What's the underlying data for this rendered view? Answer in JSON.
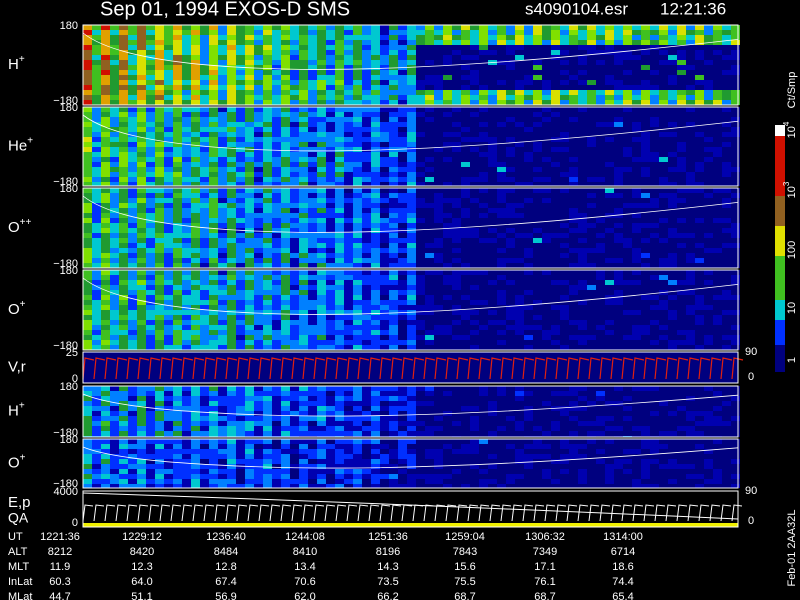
{
  "header": {
    "title": "Sep 01, 1994   EXOS-D SMS",
    "file": "s4090104.esr",
    "time": "12:21:36"
  },
  "panels": [
    {
      "label": "H",
      "sup": "+",
      "ymax": "180",
      "ymin": "−180"
    },
    {
      "label": "He",
      "sup": "+",
      "ymax": "180",
      "ymin": "−180"
    },
    {
      "label": "O",
      "sup": "++",
      "ymax": "180",
      "ymin": "−180"
    },
    {
      "label": "O",
      "sup": "+",
      "ymax": "180",
      "ymin": "−180"
    },
    {
      "label": "V,r",
      "ymax": "25",
      "ymin": "0",
      "right_top": "90",
      "right_bottom": "0"
    },
    {
      "label": "H",
      "sup": "+",
      "ymax": "180",
      "ymin": "−180"
    },
    {
      "label": "O",
      "sup": "+",
      "ymax": "180",
      "ymin": "−180"
    },
    {
      "label": "E,p",
      "label2": "QA",
      "ymax": "4000",
      "ymin": "0",
      "right_top": "90",
      "right_bottom": "0"
    }
  ],
  "colorbar": {
    "unit": "Ct/Smp",
    "labels": [
      {
        "text": "10",
        "sup": "4"
      },
      {
        "text": "10",
        "sup": "3"
      },
      {
        "text": "100"
      },
      {
        "text": "10"
      },
      {
        "text": "1"
      }
    ]
  },
  "footer": "Feb-01 2AA32L",
  "table": {
    "rows": [
      {
        "label": "UT",
        "values": [
          "1221:36",
          "1229:12",
          "1236:40",
          "1244:08",
          "1251:36",
          "1259:04",
          "1306:32",
          "1314:00"
        ]
      },
      {
        "label": "ALT",
        "values": [
          "8212",
          "8420",
          "8484",
          "8410",
          "8196",
          "7843",
          "7349",
          "6714"
        ]
      },
      {
        "label": "MLT",
        "values": [
          "11.9",
          "12.3",
          "12.8",
          "13.4",
          "14.3",
          "15.6",
          "17.1",
          "18.6"
        ]
      },
      {
        "label": "InLat",
        "values": [
          "60.3",
          "64.0",
          "67.4",
          "70.6",
          "73.5",
          "75.5",
          "76.1",
          "74.4"
        ]
      },
      {
        "label": "MLat",
        "values": [
          "44.7",
          "51.1",
          "56.9",
          "62.0",
          "66.2",
          "68.7",
          "68.7",
          "65.4"
        ]
      }
    ]
  }
}
